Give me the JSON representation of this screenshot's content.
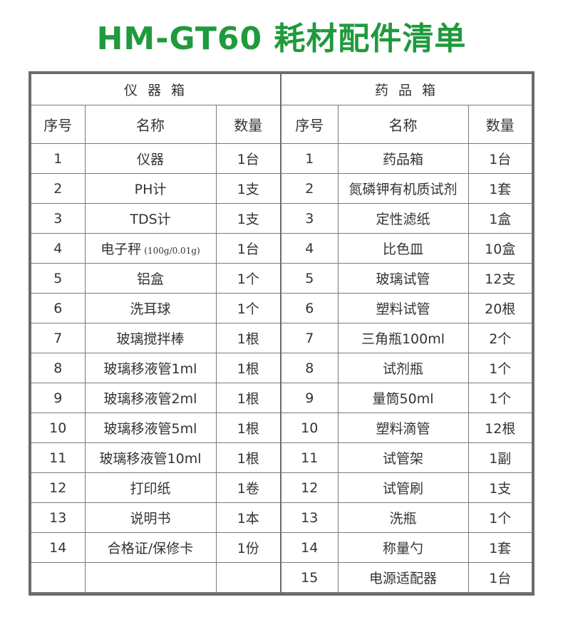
{
  "title": "HM-GT60  耗材配件清单",
  "sections": [
    {
      "heading": "仪 器 箱",
      "columns": [
        "序号",
        "名称",
        "数量"
      ],
      "rows": [
        {
          "no": "1",
          "name": "仪器",
          "qty": "1台"
        },
        {
          "no": "2",
          "name": "PH计",
          "qty": "1支"
        },
        {
          "no": "3",
          "name": "TDS计",
          "qty": "1支"
        },
        {
          "no": "4",
          "name": "电子秤",
          "note": "(100g/0.01g)",
          "qty": "1台"
        },
        {
          "no": "5",
          "name": "铝盒",
          "qty": "1个"
        },
        {
          "no": "6",
          "name": "洗耳球",
          "qty": "1个"
        },
        {
          "no": "7",
          "name": "玻璃搅拌棒",
          "qty": "1根"
        },
        {
          "no": "8",
          "name": "玻璃移液管1ml",
          "qty": "1根"
        },
        {
          "no": "9",
          "name": "玻璃移液管2ml",
          "qty": "1根"
        },
        {
          "no": "10",
          "name": "玻璃移液管5ml",
          "qty": "1根"
        },
        {
          "no": "11",
          "name": "玻璃移液管10ml",
          "qty": "1根"
        },
        {
          "no": "12",
          "name": "打印纸",
          "qty": "1卷"
        },
        {
          "no": "13",
          "name": "说明书",
          "qty": "1本"
        },
        {
          "no": "14",
          "name": "合格证/保修卡",
          "qty": "1份"
        },
        {
          "no": "",
          "name": "",
          "qty": ""
        }
      ]
    },
    {
      "heading": "药 品 箱",
      "columns": [
        "序号",
        "名称",
        "数量"
      ],
      "rows": [
        {
          "no": "1",
          "name": "药品箱",
          "qty": "1台"
        },
        {
          "no": "2",
          "name": "氮磷钾有机质试剂",
          "qty": "1套"
        },
        {
          "no": "3",
          "name": "定性滤纸",
          "qty": "1盒"
        },
        {
          "no": "4",
          "name": "比色皿",
          "qty": "10盒"
        },
        {
          "no": "5",
          "name": "玻璃试管",
          "qty": "12支"
        },
        {
          "no": "6",
          "name": "塑料试管",
          "qty": "20根"
        },
        {
          "no": "7",
          "name": "三角瓶100ml",
          "qty": "2个"
        },
        {
          "no": "8",
          "name": "试剂瓶",
          "qty": "1个"
        },
        {
          "no": "9",
          "name": "量筒50ml",
          "qty": "1个"
        },
        {
          "no": "10",
          "name": "塑料滴管",
          "qty": "12根"
        },
        {
          "no": "11",
          "name": "试管架",
          "qty": "1副"
        },
        {
          "no": "12",
          "name": "试管刷",
          "qty": "1支"
        },
        {
          "no": "13",
          "name": "洗瓶",
          "qty": "1个"
        },
        {
          "no": "14",
          "name": "称量勺",
          "qty": "1套"
        },
        {
          "no": "15",
          "name": "电源适配器",
          "qty": "1台"
        }
      ]
    }
  ]
}
